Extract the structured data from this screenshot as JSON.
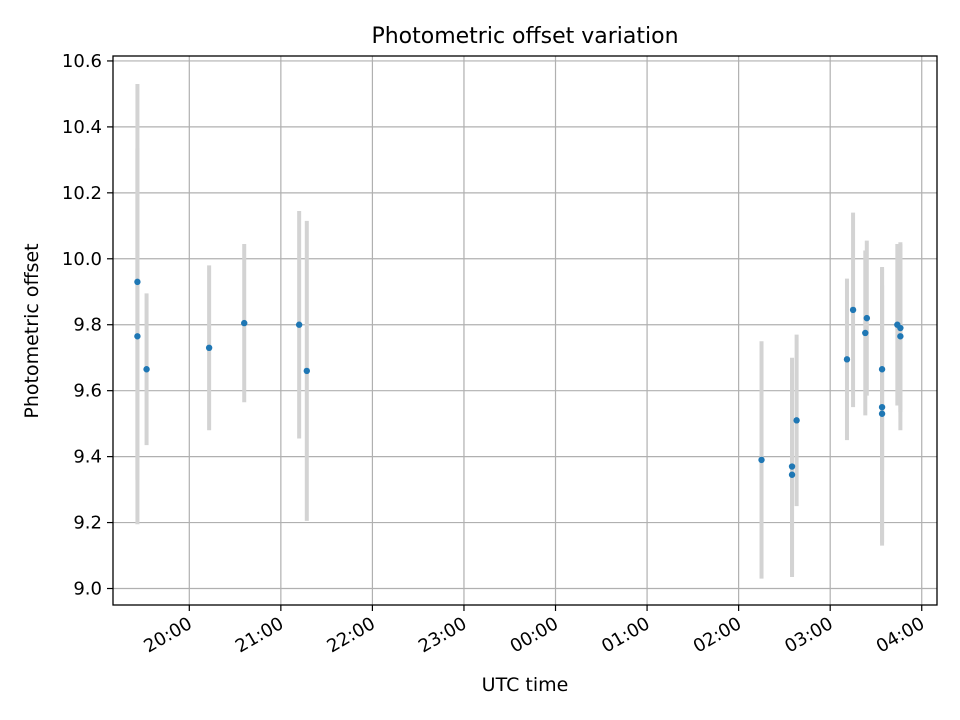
{
  "chart_data": {
    "type": "scatter",
    "title": "Photometric offset variation",
    "xlabel": "UTC time",
    "ylabel": "Photometric offset",
    "grid": true,
    "xlim": [
      "19:10",
      "04:10"
    ],
    "ylim": [
      8.95,
      10.615
    ],
    "x_ticks": [
      "20:00",
      "21:00",
      "22:00",
      "23:00",
      "00:00",
      "01:00",
      "02:00",
      "03:00",
      "04:00"
    ],
    "y_ticks": [
      "9.0",
      "9.2",
      "9.4",
      "9.6",
      "9.8",
      "10.0",
      "10.2",
      "10.4",
      "10.6"
    ],
    "series": [
      {
        "marker_color": "#1f77b4",
        "errorbar_color": "#d3d3d3",
        "points": [
          {
            "x": "19:26",
            "y": 9.93,
            "err": 0.6
          },
          {
            "x": "19:26",
            "y": 9.765,
            "err": 0.57
          },
          {
            "x": "19:32",
            "y": 9.665,
            "err": 0.23
          },
          {
            "x": "20:13",
            "y": 9.73,
            "err": 0.25
          },
          {
            "x": "20:36",
            "y": 9.805,
            "err": 0.24
          },
          {
            "x": "21:12",
            "y": 9.8,
            "err": 0.345
          },
          {
            "x": "21:17",
            "y": 9.66,
            "err": 0.455
          },
          {
            "x": "02:15",
            "y": 9.39,
            "err": 0.36
          },
          {
            "x": "02:35",
            "y": 9.37,
            "err": 0.33
          },
          {
            "x": "02:35",
            "y": 9.345,
            "err": 0.31
          },
          {
            "x": "02:38",
            "y": 9.51,
            "err": 0.26
          },
          {
            "x": "03:11",
            "y": 9.695,
            "err": 0.245
          },
          {
            "x": "03:15",
            "y": 9.845,
            "err": 0.295
          },
          {
            "x": "03:23",
            "y": 9.775,
            "err": 0.25
          },
          {
            "x": "03:24",
            "y": 9.82,
            "err": 0.235
          },
          {
            "x": "03:34",
            "y": 9.665,
            "err": 0.31
          },
          {
            "x": "03:34",
            "y": 9.55,
            "err": 0.42
          },
          {
            "x": "03:34",
            "y": 9.53,
            "err": 0.39
          },
          {
            "x": "03:44",
            "y": 9.8,
            "err": 0.245
          },
          {
            "x": "03:46",
            "y": 9.79,
            "err": 0.255
          },
          {
            "x": "03:46",
            "y": 9.765,
            "err": 0.285
          }
        ]
      }
    ]
  }
}
